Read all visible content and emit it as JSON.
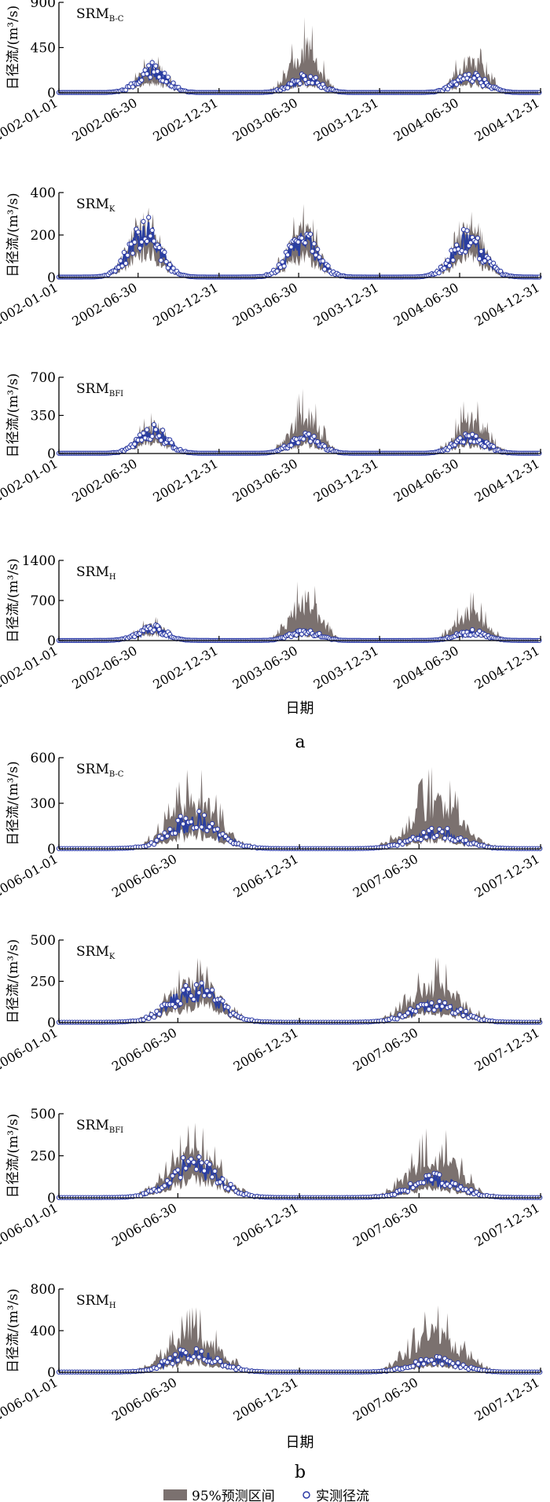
{
  "figure": {
    "legend": {
      "band_label": "95%预测区间",
      "obs_label": "实测径流"
    },
    "colors": {
      "band": "#7b716f",
      "obs": "#2b3aa6",
      "line": "#2a3fa0",
      "axis": "#000000"
    }
  },
  "chart_data": [
    {
      "type": "area",
      "group": "a",
      "model": "SRM",
      "model_sub": "B-C",
      "ylabel": "日径流/(m³/s)",
      "xlabel": "",
      "yticks": [
        0,
        450,
        900
      ],
      "ylim": [
        0,
        900
      ],
      "xlim": [
        "2002-01-01",
        "2004-12-31"
      ],
      "xticks": [
        "2002-01-01",
        "2002-06-30",
        "2002-12-31",
        "2003-06-30",
        "2003-12-31",
        "2004-06-30",
        "2004-12-31"
      ],
      "seasons": [
        {
          "center": "2002-08-01",
          "half_width_days": 95,
          "obs_peak": 300,
          "band_peak": 390
        },
        {
          "center": "2003-07-15",
          "half_width_days": 95,
          "obs_peak": 200,
          "band_peak": 750
        },
        {
          "center": "2004-07-25",
          "half_width_days": 100,
          "obs_peak": 210,
          "band_peak": 540
        }
      ],
      "series": [
        {
          "name": "95%预测区间"
        },
        {
          "name": "实测径流"
        }
      ]
    },
    {
      "type": "area",
      "group": "a",
      "model": "SRM",
      "model_sub": "K",
      "ylabel": "日径流/(m³/s)",
      "xlabel": "",
      "yticks": [
        0,
        200,
        400
      ],
      "ylim": [
        0,
        400
      ],
      "xlim": [
        "2002-01-01",
        "2004-12-31"
      ],
      "xticks": [
        "2002-01-01",
        "2002-06-30",
        "2002-12-31",
        "2003-06-30",
        "2003-12-31",
        "2004-06-30",
        "2004-12-31"
      ],
      "seasons": [
        {
          "center": "2002-07-15",
          "half_width_days": 100,
          "obs_peak": 310,
          "band_peak": 260
        },
        {
          "center": "2003-07-10",
          "half_width_days": 100,
          "obs_peak": 230,
          "band_peak": 340
        },
        {
          "center": "2004-07-20",
          "half_width_days": 105,
          "obs_peak": 240,
          "band_peak": 310
        }
      ],
      "series": [
        {
          "name": "95%预测区间"
        },
        {
          "name": "实测径流"
        }
      ]
    },
    {
      "type": "area",
      "group": "a",
      "model": "SRM",
      "model_sub": "BFI",
      "ylabel": "日径流/(m³/s)",
      "xlabel": "",
      "yticks": [
        0,
        350,
        700
      ],
      "ylim": [
        0,
        700
      ],
      "xlim": [
        "2002-01-01",
        "2004-12-31"
      ],
      "xticks": [
        "2002-01-01",
        "2002-06-30",
        "2002-12-31",
        "2003-06-30",
        "2003-12-31",
        "2004-06-30",
        "2004-12-31"
      ],
      "seasons": [
        {
          "center": "2002-08-01",
          "half_width_days": 95,
          "obs_peak": 280,
          "band_peak": 370
        },
        {
          "center": "2003-07-15",
          "half_width_days": 95,
          "obs_peak": 200,
          "band_peak": 600
        },
        {
          "center": "2004-07-25",
          "half_width_days": 100,
          "obs_peak": 200,
          "band_peak": 530
        }
      ],
      "series": [
        {
          "name": "95%预测区间"
        },
        {
          "name": "实测径流"
        }
      ]
    },
    {
      "type": "area",
      "group": "a",
      "model": "SRM",
      "model_sub": "H",
      "ylabel": "日径流/(m³/s)",
      "xlabel": "日期",
      "yticks": [
        0,
        700,
        1400
      ],
      "ylim": [
        0,
        1400
      ],
      "xlim": [
        "2002-01-01",
        "2004-12-31"
      ],
      "xticks": [
        "2002-01-01",
        "2002-06-30",
        "2002-12-31",
        "2003-06-30",
        "2003-12-31",
        "2004-06-30",
        "2004-12-31"
      ],
      "seasons": [
        {
          "center": "2002-08-01",
          "half_width_days": 95,
          "obs_peak": 280,
          "band_peak": 420
        },
        {
          "center": "2003-07-15",
          "half_width_days": 95,
          "obs_peak": 210,
          "band_peak": 1200
        },
        {
          "center": "2004-07-25",
          "half_width_days": 100,
          "obs_peak": 200,
          "band_peak": 850
        }
      ],
      "series": [
        {
          "name": "95%预测区间"
        },
        {
          "name": "实测径流"
        }
      ]
    },
    {
      "type": "area",
      "group": "b",
      "model": "SRM",
      "model_sub": "B-C",
      "ylabel": "日径流/(m³/s)",
      "xlabel": "",
      "yticks": [
        0,
        300,
        600
      ],
      "ylim": [
        0,
        600
      ],
      "xlim": [
        "2006-01-01",
        "2007-12-31"
      ],
      "xticks": [
        "2006-01-01",
        "2006-06-30",
        "2006-12-31",
        "2007-06-30",
        "2007-12-31"
      ],
      "seasons": [
        {
          "center": "2006-07-25",
          "half_width_days": 105,
          "obs_peak": 260,
          "band_peak": 540
        },
        {
          "center": "2007-07-25",
          "half_width_days": 105,
          "obs_peak": 150,
          "band_peak": 540
        }
      ],
      "series": [
        {
          "name": "95%预测区间"
        },
        {
          "name": "实测径流"
        }
      ]
    },
    {
      "type": "area",
      "group": "b",
      "model": "SRM",
      "model_sub": "K",
      "ylabel": "日径流/(m³/s)",
      "xlabel": "",
      "yticks": [
        0,
        250,
        500
      ],
      "ylim": [
        0,
        500
      ],
      "xlim": [
        "2006-01-01",
        "2007-12-31"
      ],
      "xticks": [
        "2006-01-01",
        "2006-06-30",
        "2006-12-31",
        "2007-06-30",
        "2007-12-31"
      ],
      "seasons": [
        {
          "center": "2006-07-25",
          "half_width_days": 105,
          "obs_peak": 280,
          "band_peak": 390
        },
        {
          "center": "2007-07-25",
          "half_width_days": 105,
          "obs_peak": 150,
          "band_peak": 390
        }
      ],
      "series": [
        {
          "name": "95%预测区间"
        },
        {
          "name": "实测径流"
        }
      ]
    },
    {
      "type": "area",
      "group": "b",
      "model": "SRM",
      "model_sub": "BFI",
      "ylabel": "日径流/(m³/s)",
      "xlabel": "",
      "yticks": [
        0,
        250,
        500
      ],
      "ylim": [
        0,
        500
      ],
      "xlim": [
        "2006-01-01",
        "2007-12-31"
      ],
      "xticks": [
        "2006-01-01",
        "2006-06-30",
        "2006-12-31",
        "2007-06-30",
        "2007-12-31"
      ],
      "seasons": [
        {
          "center": "2006-07-25",
          "half_width_days": 105,
          "obs_peak": 270,
          "band_peak": 440
        },
        {
          "center": "2007-07-25",
          "half_width_days": 105,
          "obs_peak": 150,
          "band_peak": 440
        }
      ],
      "series": [
        {
          "name": "95%预测区间"
        },
        {
          "name": "实测径流"
        }
      ]
    },
    {
      "type": "area",
      "group": "b",
      "model": "SRM",
      "model_sub": "H",
      "ylabel": "日径流/(m³/s)",
      "xlabel": "日期",
      "yticks": [
        0,
        400,
        800
      ],
      "ylim": [
        0,
        800
      ],
      "xlim": [
        "2006-01-01",
        "2007-12-31"
      ],
      "xticks": [
        "2006-01-01",
        "2006-06-30",
        "2006-12-31",
        "2007-06-30",
        "2007-12-31"
      ],
      "seasons": [
        {
          "center": "2006-07-25",
          "half_width_days": 105,
          "obs_peak": 260,
          "band_peak": 620
        },
        {
          "center": "2007-07-25",
          "half_width_days": 105,
          "obs_peak": 150,
          "band_peak": 640
        }
      ],
      "series": [
        {
          "name": "95%预测区间"
        },
        {
          "name": "实测径流"
        }
      ]
    }
  ],
  "panel_labels": [
    "a",
    "b"
  ]
}
